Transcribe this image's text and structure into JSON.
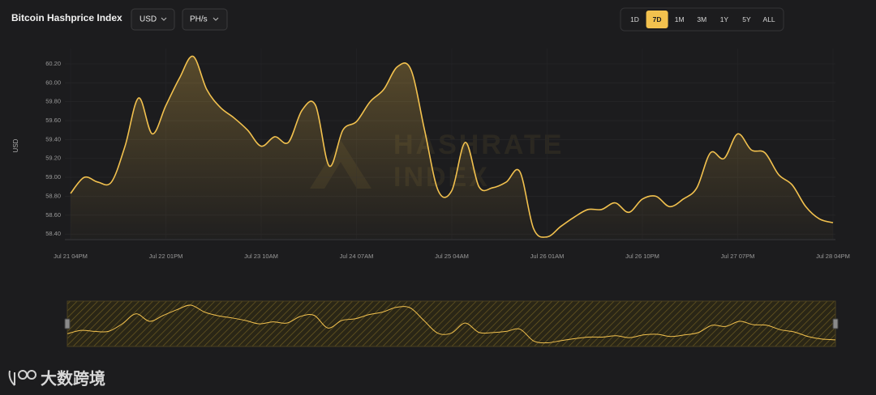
{
  "header": {
    "title": "Bitcoin Hashprice Index",
    "currency": "USD",
    "unit": "PH/s",
    "ranges": [
      "1D",
      "7D",
      "1M",
      "3M",
      "1Y",
      "5Y",
      "ALL"
    ],
    "active_range": "7D"
  },
  "watermark": [
    "HASHRATE",
    "INDEX"
  ],
  "footer": {
    "brand": "大数跨境"
  },
  "chart_data": {
    "type": "line",
    "ylabel": "USD",
    "categories": [
      "Jul 21 04PM",
      null,
      null,
      null,
      null,
      null,
      null,
      "Jul 22 01PM",
      null,
      null,
      null,
      null,
      null,
      null,
      "Jul 23 10AM",
      null,
      null,
      null,
      null,
      null,
      null,
      "Jul 24 07AM",
      null,
      null,
      null,
      null,
      null,
      null,
      "Jul 25 04AM",
      null,
      null,
      null,
      null,
      null,
      null,
      "Jul 26 01AM",
      null,
      null,
      null,
      null,
      null,
      null,
      "Jul 26 10PM",
      null,
      null,
      null,
      null,
      null,
      null,
      "Jul 27 07PM",
      null,
      null,
      null,
      null,
      null,
      null,
      "Jul 28 04PM"
    ],
    "series": [
      {
        "name": "Hashprice",
        "color": "#f2c14e",
        "values": [
          58.83,
          59.0,
          58.95,
          58.95,
          59.33,
          59.84,
          59.46,
          59.76,
          60.05,
          60.28,
          59.93,
          59.74,
          59.63,
          59.5,
          59.33,
          59.43,
          59.37,
          59.71,
          59.76,
          59.12,
          59.5,
          59.59,
          59.8,
          59.93,
          60.17,
          60.14,
          59.5,
          58.86,
          58.86,
          59.37,
          58.9,
          58.89,
          58.95,
          59.06,
          58.46,
          58.37,
          58.48,
          58.58,
          58.66,
          58.66,
          58.73,
          58.63,
          58.77,
          58.8,
          58.69,
          58.77,
          58.89,
          59.26,
          59.2,
          59.46,
          59.29,
          59.26,
          59.03,
          58.92,
          58.69,
          58.56,
          58.52
        ]
      }
    ],
    "ylim": [
      58.35,
      60.32
    ],
    "yticks": [
      {
        "value": 58.4,
        "label": "58.40"
      },
      {
        "value": 58.6,
        "label": "58.60"
      },
      {
        "value": 58.8,
        "label": "58.80"
      },
      {
        "value": 59.0,
        "label": "59.00"
      },
      {
        "value": 59.2,
        "label": "59.20"
      },
      {
        "value": 59.4,
        "label": "59.40"
      },
      {
        "value": 59.6,
        "label": "59.60"
      },
      {
        "value": 59.8,
        "label": "59.80"
      },
      {
        "value": 60.0,
        "label": "60.00"
      },
      {
        "value": 60.2,
        "label": "60.20"
      }
    ],
    "grid": true
  }
}
